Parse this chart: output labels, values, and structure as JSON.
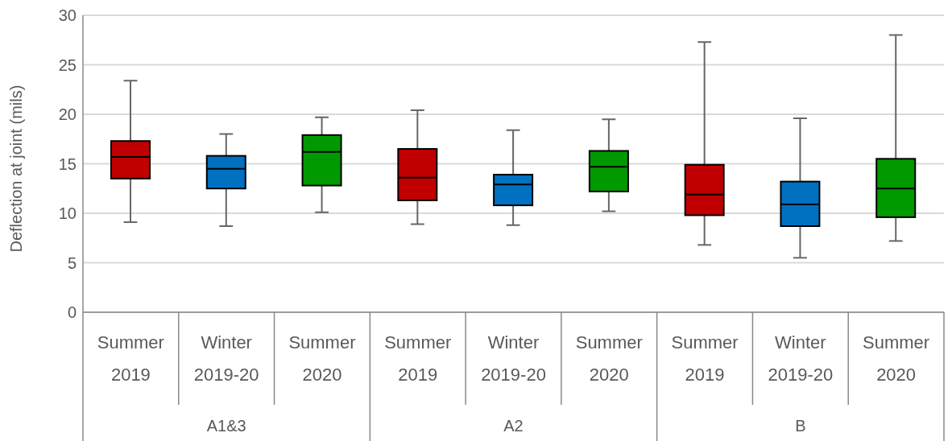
{
  "chart_data": {
    "type": "box",
    "ylabel": "Deflection at joint  (mils)",
    "categories": [
      "Summer 2019",
      "Winter 2019-20",
      "Summer 2020",
      "Summer 2019",
      "Winter 2019-20",
      "Summer 2020",
      "Summer 2019",
      "Winter 2019-20",
      "Summer 2020"
    ],
    "colors": [
      "#c00000",
      "#0070c0",
      "#009900",
      "#c00000",
      "#0070c0",
      "#009900",
      "#c00000",
      "#0070c0",
      "#009900"
    ],
    "boxes": [
      {
        "low": 9.1,
        "q1": 13.5,
        "median": 15.7,
        "q3": 17.3,
        "high": 23.4
      },
      {
        "low": 8.7,
        "q1": 12.5,
        "median": 14.5,
        "q3": 15.8,
        "high": 18.0
      },
      {
        "low": 10.1,
        "q1": 12.8,
        "median": 16.2,
        "q3": 17.9,
        "high": 19.7
      },
      {
        "low": 8.9,
        "q1": 11.3,
        "median": 13.6,
        "q3": 16.5,
        "high": 20.4
      },
      {
        "low": 8.8,
        "q1": 10.8,
        "median": 12.9,
        "q3": 13.9,
        "high": 18.4
      },
      {
        "low": 10.2,
        "q1": 12.2,
        "median": 14.7,
        "q3": 16.3,
        "high": 19.5
      },
      {
        "low": 6.8,
        "q1": 9.8,
        "median": 11.9,
        "q3": 14.9,
        "high": 27.3
      },
      {
        "low": 5.5,
        "q1": 8.7,
        "median": 10.9,
        "q3": 13.2,
        "high": 19.6
      },
      {
        "low": 7.2,
        "q1": 9.6,
        "median": 12.5,
        "q3": 15.5,
        "high": 28.0
      }
    ],
    "annotations": [
      "A1&3",
      "A2",
      "B"
    ],
    "ylim": [
      0,
      30
    ],
    "yticks": [
      0,
      5,
      10,
      15,
      20,
      25,
      30
    ],
    "grid": "y",
    "legend": false
  }
}
